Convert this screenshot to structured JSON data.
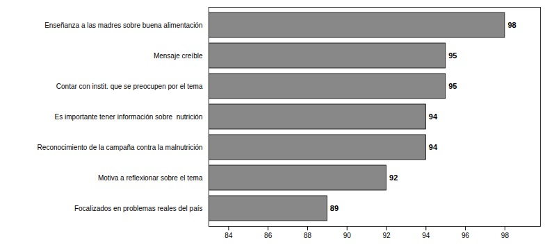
{
  "chart_data": {
    "type": "bar",
    "orientation": "horizontal",
    "categories": [
      "Focalizados en problemas reales del país",
      "Motiva a reflexionar sobre el tema",
      "Reconocimiento de la campaña contra la malnutrición",
      "Es importante tener información sobre  nutrición",
      "Contar con instit. que se preocupen por el tema",
      "Mensaje creíble",
      "Enseñanza a las madres sobre buena alimentación"
    ],
    "values": [
      89,
      92,
      94,
      94,
      95,
      95,
      98
    ],
    "color": "#888888",
    "xlim": [
      83,
      99.8
    ],
    "xticks": [
      84,
      86,
      88,
      90,
      92,
      94,
      96,
      98
    ],
    "data_labels": true,
    "grid": false
  }
}
